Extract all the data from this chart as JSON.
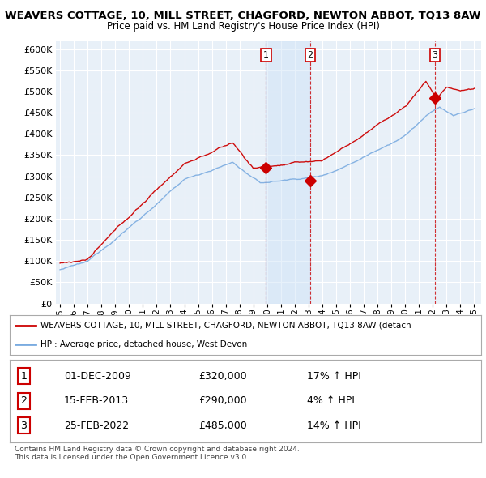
{
  "title": "WEAVERS COTTAGE, 10, MILL STREET, CHAGFORD, NEWTON ABBOT, TQ13 8AW",
  "subtitle": "Price paid vs. HM Land Registry's House Price Index (HPI)",
  "red_label": "WEAVERS COTTAGE, 10, MILL STREET, CHAGFORD, NEWTON ABBOT, TQ13 8AW (detach",
  "blue_label": "HPI: Average price, detached house, West Devon",
  "transactions": [
    {
      "num": 1,
      "date": "01-DEC-2009",
      "price": "£320,000",
      "pct": "17%",
      "dir": "↑"
    },
    {
      "num": 2,
      "date": "15-FEB-2013",
      "price": "£290,000",
      "pct": "4%",
      "dir": "↑"
    },
    {
      "num": 3,
      "date": "25-FEB-2022",
      "price": "£485,000",
      "pct": "14%",
      "dir": "↑"
    }
  ],
  "transaction_years": [
    2009.92,
    2013.12,
    2022.15
  ],
  "transaction_prices": [
    320000,
    290000,
    485000
  ],
  "footer": "Contains HM Land Registry data © Crown copyright and database right 2024.\nThis data is licensed under the Open Government Licence v3.0.",
  "ylim": [
    0,
    620000
  ],
  "yticks": [
    0,
    50000,
    100000,
    150000,
    200000,
    250000,
    300000,
    350000,
    400000,
    450000,
    500000,
    550000,
    600000
  ],
  "xlim_start": 1994.7,
  "xlim_end": 2025.5,
  "background_color": "#ffffff",
  "plot_bg_color": "#e8f0f8",
  "grid_color": "#ffffff",
  "red_color": "#cc0000",
  "blue_color": "#7aabe0",
  "vline_color": "#cc0000",
  "shade_color": "#d0e4f7",
  "shade_alpha": 0.5,
  "shade_x1": 2009.92,
  "shade_x2": 2013.12
}
